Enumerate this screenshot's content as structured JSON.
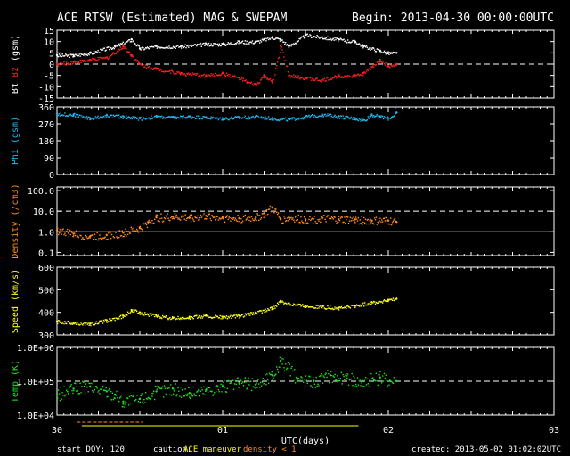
{
  "header": {
    "title": "ACE RTSW (Estimated) MAG & SWEPAM",
    "begin": "Begin: 2013-04-30 00:00:00UTC"
  },
  "footer": {
    "start_doy": "start DOY: 120",
    "caution_label": "caution:",
    "caution_maneuver": "ACE maneuver",
    "caution_density": "density < 1",
    "created": "created: 2013-05-02 01:02:02UTC"
  },
  "colors": {
    "background": "#000000",
    "axis": "#ffffff",
    "bt": "#ffffff",
    "bz": "#ff2020",
    "phi": "#22b8f0",
    "density": "#ff8c1a",
    "speed": "#ffff20",
    "temp": "#20e020",
    "caution": "#ffff00"
  },
  "chart_data": [
    {
      "type": "scatter",
      "panel": "mag",
      "ylabel_prefix": "Bt",
      "ylabel_series": "Bz",
      "ylabel_unit": "(gsm)",
      "ylim": [
        -15,
        15
      ],
      "yticks": [
        "15",
        "10",
        "5",
        "0",
        "-5",
        "-10",
        "-15"
      ],
      "ytick_values": [
        15,
        10,
        5,
        0,
        -5,
        -10,
        -15
      ],
      "dashed_at": 0,
      "series": [
        {
          "name": "Bt",
          "color": "#ffffff",
          "x": [
            0,
            0.1,
            0.2,
            0.35,
            0.45,
            0.5,
            0.6,
            0.75,
            0.9,
            1.0,
            1.1,
            1.2,
            1.25,
            1.3,
            1.35,
            1.4,
            1.5,
            1.6,
            1.7,
            1.8,
            1.85,
            1.95,
            2.0,
            2.05
          ],
          "y": [
            4,
            4,
            5,
            8,
            11,
            7,
            8,
            8,
            9,
            9,
            10,
            10,
            11,
            12,
            11,
            8,
            13,
            12,
            11,
            10,
            8,
            6,
            5,
            5
          ]
        },
        {
          "name": "Bz",
          "color": "#ff2020",
          "x": [
            0,
            0.1,
            0.2,
            0.3,
            0.4,
            0.45,
            0.5,
            0.6,
            0.75,
            0.9,
            1.0,
            1.1,
            1.15,
            1.2,
            1.25,
            1.3,
            1.35,
            1.4,
            1.5,
            1.6,
            1.7,
            1.8,
            1.85,
            1.95,
            2.0,
            2.05
          ],
          "y": [
            0,
            1,
            2,
            3,
            8,
            4,
            0,
            -2,
            -4,
            -5,
            -4,
            -6,
            -8,
            -9,
            -5,
            -8,
            8,
            -5,
            -6,
            -7,
            -5,
            -5,
            -4,
            2,
            -1,
            0
          ]
        }
      ]
    },
    {
      "type": "scatter",
      "panel": "phi",
      "ylabel": "Phi",
      "ylabel_unit": "(gsm)",
      "ylim": [
        0,
        360
      ],
      "yticks": [
        "360",
        "270",
        "180",
        "90",
        "0"
      ],
      "ytick_values": [
        360,
        270,
        180,
        90,
        0
      ],
      "series": [
        {
          "name": "Phi",
          "color": "#22b8f0",
          "x": [
            0,
            0.1,
            0.2,
            0.3,
            0.4,
            0.5,
            0.6,
            0.7,
            0.8,
            0.9,
            1.0,
            1.1,
            1.2,
            1.3,
            1.4,
            1.5,
            1.6,
            1.7,
            1.8,
            1.85,
            1.9,
            1.95,
            2.0,
            2.05
          ],
          "y": [
            325,
            320,
            300,
            315,
            310,
            300,
            310,
            305,
            310,
            305,
            300,
            305,
            310,
            300,
            295,
            310,
            320,
            310,
            300,
            290,
            320,
            310,
            300,
            330
          ]
        }
      ]
    },
    {
      "type": "scatter",
      "panel": "density",
      "ylabel": "Density",
      "ylabel_unit": "(/cm3)",
      "yscale": "log",
      "ylim": [
        0.07,
        150
      ],
      "yticks": [
        "100.0",
        "10.0",
        "1.0",
        "0.1"
      ],
      "ytick_values": [
        100,
        10,
        1,
        0.1
      ],
      "dashed_at": 10,
      "solid_at": 1,
      "series": [
        {
          "name": "Density",
          "color": "#ff8c1a",
          "x": [
            0,
            0.1,
            0.2,
            0.3,
            0.4,
            0.5,
            0.55,
            0.6,
            0.7,
            0.8,
            0.9,
            1.0,
            1.1,
            1.2,
            1.25,
            1.3,
            1.35,
            1.4,
            1.5,
            1.6,
            1.7,
            1.8,
            1.9,
            2.0,
            2.05
          ],
          "y": [
            1.2,
            0.8,
            0.6,
            0.7,
            0.9,
            1.5,
            3,
            5,
            5.5,
            5,
            6,
            5,
            4.5,
            5,
            8,
            15,
            4,
            5,
            4,
            4.5,
            4,
            4,
            3.5,
            3.5,
            3
          ]
        }
      ]
    },
    {
      "type": "scatter",
      "panel": "speed",
      "ylabel": "Speed",
      "ylabel_unit": "(km/s)",
      "ylim": [
        300,
        600
      ],
      "yticks": [
        "600",
        "500",
        "400",
        "300"
      ],
      "ytick_values": [
        600,
        500,
        400,
        300
      ],
      "series": [
        {
          "name": "Speed",
          "color": "#ffff20",
          "x": [
            0,
            0.1,
            0.2,
            0.3,
            0.4,
            0.45,
            0.5,
            0.6,
            0.7,
            0.8,
            0.9,
            1.0,
            1.1,
            1.2,
            1.3,
            1.35,
            1.4,
            1.5,
            1.6,
            1.7,
            1.8,
            1.9,
            2.0,
            2.05
          ],
          "y": [
            360,
            355,
            350,
            365,
            385,
            410,
            400,
            385,
            375,
            380,
            385,
            380,
            385,
            400,
            420,
            450,
            440,
            430,
            425,
            420,
            430,
            445,
            455,
            460
          ]
        }
      ]
    },
    {
      "type": "scatter",
      "panel": "temp",
      "ylabel": "Temp",
      "ylabel_unit": "(K)",
      "yscale": "log",
      "ylim": [
        10000,
        1000000
      ],
      "yticks": [
        "1.0E+06",
        "1.0E+05",
        "1.0E+04"
      ],
      "ytick_values": [
        1000000,
        100000,
        10000
      ],
      "dashed_at": 100000,
      "series": [
        {
          "name": "Temp",
          "color": "#20e020",
          "x": [
            0,
            0.1,
            0.2,
            0.3,
            0.35,
            0.4,
            0.5,
            0.6,
            0.7,
            0.8,
            0.9,
            1.0,
            1.1,
            1.2,
            1.3,
            1.35,
            1.45,
            1.55,
            1.65,
            1.75,
            1.85,
            1.95,
            2.05
          ],
          "y": [
            40000,
            60000,
            70000,
            50000,
            40000,
            25000,
            30000,
            50000,
            60000,
            45000,
            55000,
            70000,
            90000,
            80000,
            150000,
            400000,
            120000,
            100000,
            150000,
            120000,
            100000,
            130000,
            100000
          ]
        }
      ]
    },
    {
      "type": "scatter",
      "panel": "x-axis",
      "xlabel": "UTC(days)",
      "xlim": [
        0,
        3
      ],
      "xticks": [
        "30",
        "01",
        "02",
        "03"
      ],
      "xtick_values": [
        0,
        1,
        2,
        3
      ]
    }
  ]
}
